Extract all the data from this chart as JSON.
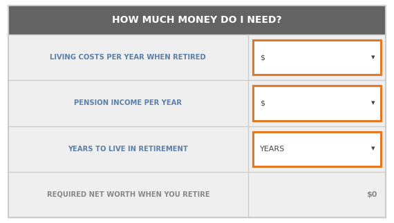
{
  "title": "HOW MUCH MONEY DO I NEED?",
  "title_bg": "#636363",
  "title_color": "#ffffff",
  "row_bg": "#efefef",
  "border_color": "#cccccc",
  "orange": "#e87722",
  "label_color": "#5b7fa6",
  "result_label_color": "#888888",
  "rows": [
    {
      "label": "LIVING COSTS PER YEAR WHEN RETIRED",
      "input_text": "$",
      "dropdown_text": "▾",
      "type": "dropdown"
    },
    {
      "label": "PENSION INCOME PER YEAR",
      "input_text": "$",
      "dropdown_text": "▾",
      "type": "dropdown"
    },
    {
      "label": "YEARS TO LIVE IN RETIREMENT",
      "input_text": "YEARS",
      "dropdown_text": "▾",
      "type": "dropdown"
    },
    {
      "label": "REQUIRED NET WORTH WHEN YOU RETIRE",
      "input_text": "$0",
      "type": "result"
    }
  ],
  "fig_width": 5.7,
  "fig_height": 3.23,
  "dpi": 100
}
